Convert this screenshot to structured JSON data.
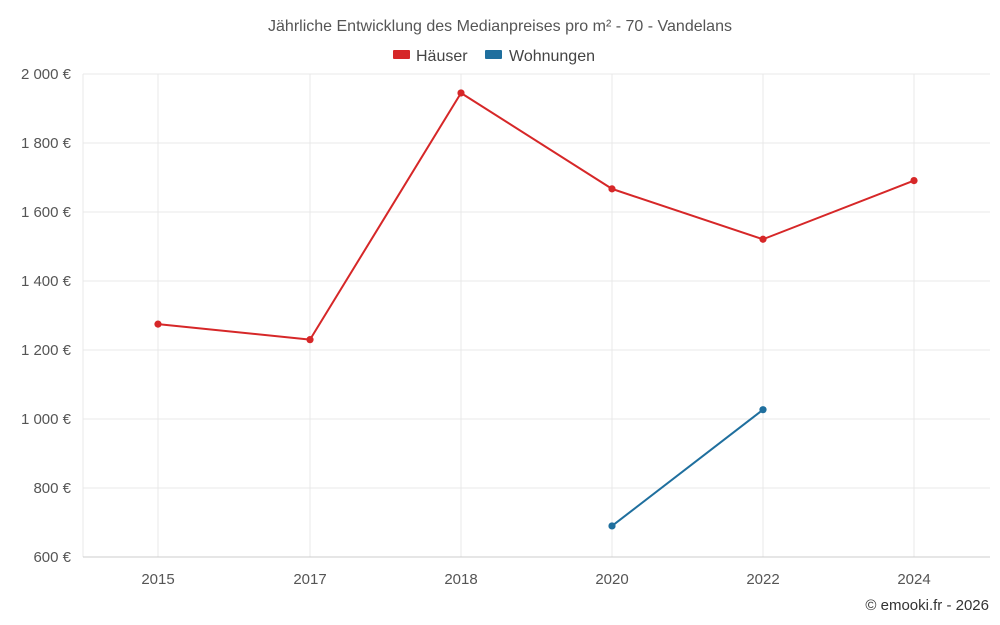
{
  "chart_data": {
    "type": "line",
    "title": "Jährliche Entwicklung des Medianpreises pro m² - 70 - Vandelans",
    "categories": [
      "2015",
      "2017",
      "2018",
      "2020",
      "2022",
      "2024"
    ],
    "series": [
      {
        "name": "Häuser",
        "color": "#d62728",
        "values": [
          1275,
          1230,
          1945,
          1667,
          1521,
          1691
        ]
      },
      {
        "name": "Wohnungen",
        "color": "#1f6f9e",
        "values": [
          null,
          null,
          null,
          690,
          1027,
          null
        ]
      }
    ],
    "ylim": [
      600,
      2000
    ],
    "yticks": [
      600,
      800,
      1000,
      1200,
      1400,
      1600,
      1800,
      2000
    ],
    "ytick_labels": [
      "600 €",
      "800 €",
      "1 000 €",
      "1 200 €",
      "1 400 €",
      "1 600 €",
      "1 800 €",
      "2 000 €"
    ],
    "xlabel": "",
    "ylabel": "",
    "legend_position": "top-center",
    "grid": true
  },
  "credit": "© emooki.fr - 2026"
}
